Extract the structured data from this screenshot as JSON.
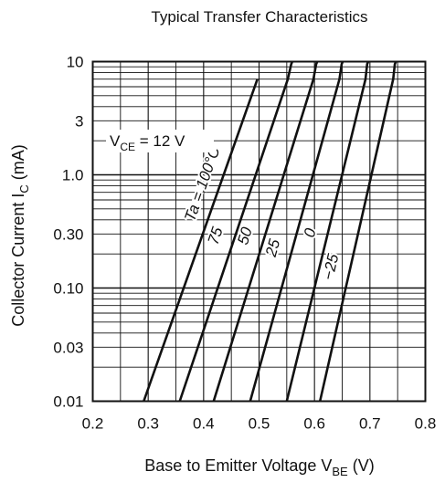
{
  "chart_data": {
    "type": "line",
    "title": "Typical Transfer Characteristics",
    "xlabel": {
      "main": "Base to Emitter Voltage  V",
      "sub": "BE",
      "unit": "  (V)"
    },
    "ylabel": {
      "main": "Collector Current  I",
      "sub": "C",
      "unit": "  (mA)"
    },
    "x_scale": "linear",
    "y_scale": "log",
    "xlim": [
      0.2,
      0.8
    ],
    "ylim": [
      0.01,
      10
    ],
    "x_ticks": [
      "0.2",
      "0.3",
      "0.4",
      "0.5",
      "0.6",
      "0.7",
      "0.8"
    ],
    "y_ticks": [
      {
        "value": 10,
        "label": "10"
      },
      {
        "value": 3,
        "label": "3"
      },
      {
        "value": 1,
        "label": "1.0"
      },
      {
        "value": 0.3,
        "label": "0.30"
      },
      {
        "value": 0.1,
        "label": "0.10"
      },
      {
        "value": 0.03,
        "label": "0.03"
      },
      {
        "value": 0.01,
        "label": "0.01"
      }
    ],
    "grid": true,
    "condition": {
      "main": "V",
      "sub": "CE",
      "rest": " = 12 V"
    },
    "series": [
      {
        "name": "Ta = 100°C",
        "x": [
          0.292,
          0.497
        ],
        "y": [
          0.01,
          7
        ]
      },
      {
        "name": "75",
        "x": [
          0.357,
          0.552,
          0.558,
          0.56
        ],
        "y": [
          0.01,
          7,
          9.5,
          10
        ]
      },
      {
        "name": "50",
        "x": [
          0.418,
          0.598,
          0.603,
          0.605
        ],
        "y": [
          0.01,
          7,
          9.5,
          10
        ]
      },
      {
        "name": "25",
        "x": [
          0.484,
          0.645,
          0.649,
          0.651
        ],
        "y": [
          0.01,
          7,
          9.5,
          10
        ]
      },
      {
        "name": "0",
        "x": [
          0.55,
          0.692,
          0.695,
          0.697
        ],
        "y": [
          0.01,
          7,
          9.5,
          10
        ]
      },
      {
        "name": "−25",
        "x": [
          0.61,
          0.742,
          0.745,
          0.747
        ],
        "y": [
          0.01,
          7,
          9.5,
          10
        ]
      }
    ]
  }
}
